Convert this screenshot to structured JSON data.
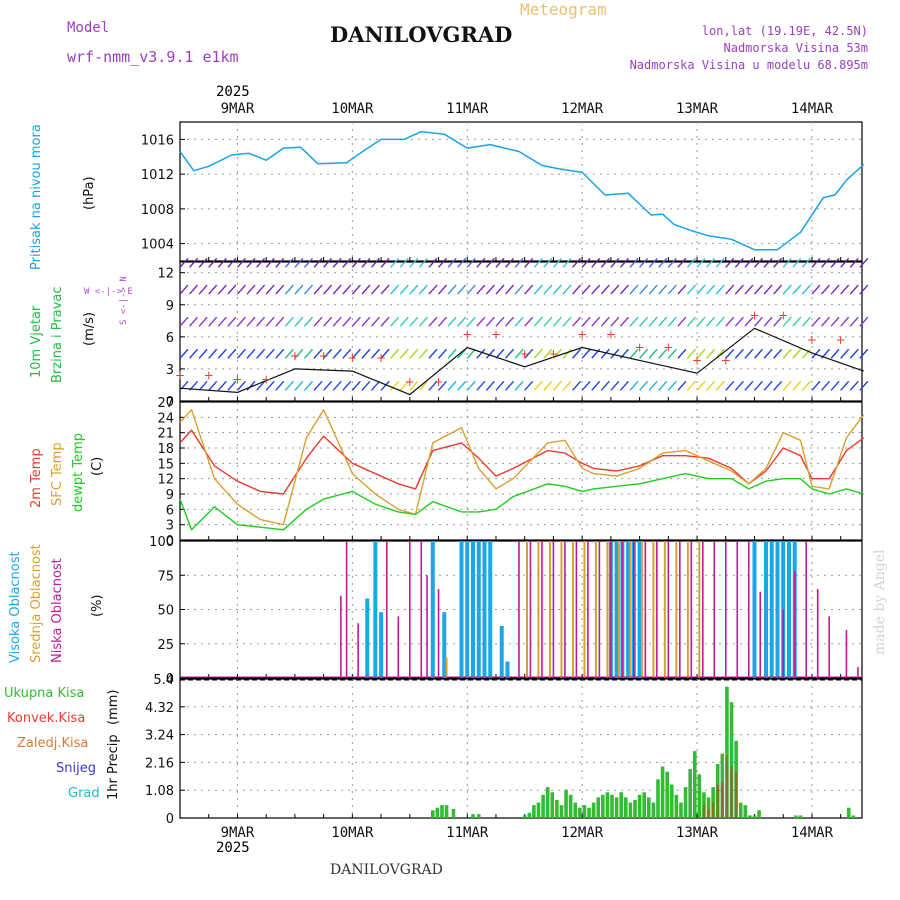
{
  "header": {
    "model_label": "Model",
    "model_name": "wrf-nmm_v3.9.1 e1km",
    "product": "Meteogram",
    "station": "DANILOVGRAD",
    "lonlat": "lon,lat (19.19E, 42.5N)",
    "elevation": "Nadmorska Visina 53m",
    "model_elevation": "Nadmorska Visina u modelu 68.895m"
  },
  "colors": {
    "pressure": "#1aa3e8",
    "temp2m": "#e83c2e",
    "sfc_temp": "#d9a030",
    "dewpt": "#22cc22",
    "high_cloud": "#1ba6e8",
    "mid_cloud": "#d9a030",
    "low_cloud": "#c0199a",
    "total_precip": "#33bb33",
    "conv_precip": "#e83c2e",
    "frozen_precip": "#e07830",
    "snow": "#3b3bcc",
    "hail": "#22bbbb",
    "wind_label": "#22bb44",
    "compass": "#b050d0",
    "model_text": "#9a40c8",
    "meteogram_text": "#e8c070"
  },
  "time_axis": {
    "year": "2025",
    "days": [
      "9MAR",
      "10MAR",
      "11MAR",
      "12MAR",
      "13MAR",
      "14MAR"
    ]
  },
  "panels": {
    "pressure": {
      "title": "Pritisak na nivou mora",
      "unit": "(hPa)"
    },
    "wind": {
      "title_1": "10m Vjetar",
      "title_2": "Brzina i Pravac",
      "unit": "(m/s)",
      "compass": "W <-|-> E",
      "compass_v": "S <-|-> N"
    },
    "temp": {
      "title_1": "2m Temp",
      "title_2": "SFC Temp",
      "title_3": "dewpt Temp",
      "unit": "(C)"
    },
    "cloud": {
      "title_1": "Visoka Oblacnost",
      "title_2": "Srednja Oblacnost",
      "title_3": "Niska Oblacnost",
      "unit": "(%)"
    },
    "precip": {
      "title": "1hr Precip",
      "unit": "(mm)",
      "legend": [
        "Ukupna Kisa",
        "Konvek.Kisa",
        "Zaledj.Kisa",
        "Snijeg",
        "Grad"
      ]
    }
  },
  "footer": {
    "station": "DANILOVGRAD",
    "credit": "made by Angel"
  },
  "chart_data": [
    {
      "type": "line",
      "title": "Pritisak na nivou mora",
      "ylabel": "(hPa)",
      "x_unit": "days since 8MAR 12UTC",
      "ylim": [
        1002,
        1018
      ],
      "yticks": [
        "1004",
        "1008",
        "1012",
        "1016"
      ],
      "series": [
        {
          "name": "Pritisak na nivou mora",
          "x": [
            0,
            0.12,
            0.25,
            0.45,
            0.6,
            0.75,
            0.9,
            1.05,
            1.2,
            1.45,
            1.6,
            1.75,
            1.95,
            2.1,
            2.3,
            2.5,
            2.7,
            2.95,
            3.15,
            3.3,
            3.5,
            3.7,
            3.9,
            4.1,
            4.2,
            4.3,
            4.45,
            4.6,
            4.8,
            5.0,
            5.2,
            5.4,
            5.6,
            5.7,
            5.8,
            5.95
          ],
          "values": [
            1014.6,
            1012.4,
            1012.9,
            1014.2,
            1014.4,
            1013.6,
            1015.0,
            1015.1,
            1013.2,
            1013.3,
            1014.7,
            1016.0,
            1016.0,
            1016.9,
            1016.6,
            1015.0,
            1015.4,
            1014.6,
            1013.0,
            1012.6,
            1012.2,
            1009.6,
            1009.8,
            1007.3,
            1007.4,
            1006.2,
            1005.5,
            1004.9,
            1004.5,
            1003.3,
            1003.3,
            1005.3,
            1009.3,
            1009.6,
            1011.3,
            1013.1
          ]
        }
      ]
    },
    {
      "type": "line",
      "title": "10m Vjetar Brzina i Pravac",
      "ylabel": "(m/s)",
      "ylim": [
        0,
        13
      ],
      "yticks": [
        "0",
        "3",
        "6",
        "9",
        "12"
      ],
      "series": [
        {
          "name": "10m Vjetar",
          "x": [
            0,
            0.5,
            1.0,
            1.5,
            2.0,
            2.5,
            3.0,
            3.5,
            4.0,
            4.5,
            5.0,
            5.5,
            5.95
          ],
          "values": [
            1.2,
            0.8,
            3.0,
            2.8,
            0.6,
            5.0,
            3.2,
            5.0,
            3.8,
            2.6,
            6.8,
            4.5,
            2.8
          ]
        }
      ]
    },
    {
      "type": "line",
      "title": "2m Temp / SFC Temp / dewpt Temp",
      "ylabel": "(C)",
      "ylim": [
        0,
        27
      ],
      "yticks": [
        "0",
        "3",
        "6",
        "9",
        "12",
        "15",
        "18",
        "21",
        "24",
        "27"
      ],
      "x": [
        0,
        0.1,
        0.3,
        0.5,
        0.7,
        0.9,
        1.1,
        1.25,
        1.5,
        1.7,
        1.9,
        2.05,
        2.2,
        2.45,
        2.6,
        2.75,
        2.9,
        3.2,
        3.35,
        3.5,
        3.6,
        3.8,
        4.0,
        4.2,
        4.4,
        4.6,
        4.8,
        4.95,
        5.1,
        5.25,
        5.4,
        5.5,
        5.65,
        5.8,
        5.95
      ],
      "series": [
        {
          "name": "2m Temp",
          "values": [
            19.0,
            21.5,
            14.5,
            11.5,
            9.5,
            9.0,
            16.0,
            20.3,
            15.0,
            13.0,
            11.0,
            10.0,
            17.5,
            19.0,
            16.0,
            12.5,
            14.0,
            17.5,
            17.0,
            15.0,
            14.0,
            13.5,
            14.5,
            16.5,
            16.5,
            16.0,
            14.0,
            11.0,
            13.5,
            18.0,
            16.5,
            12.0,
            12.0,
            17.5,
            20.0
          ]
        },
        {
          "name": "SFC Temp",
          "values": [
            23.0,
            25.5,
            12.0,
            7.0,
            4.0,
            3.0,
            20.0,
            25.5,
            13.0,
            9.0,
            6.0,
            5.0,
            19.0,
            22.0,
            14.0,
            10.0,
            12.0,
            19.0,
            19.5,
            14.0,
            13.0,
            12.5,
            14.0,
            17.0,
            17.5,
            15.5,
            13.5,
            11.0,
            14.0,
            21.0,
            19.5,
            10.5,
            10.0,
            20.0,
            24.5
          ]
        },
        {
          "name": "dewpt Temp",
          "values": [
            8.0,
            2.0,
            6.5,
            3.0,
            2.5,
            2.0,
            6.0,
            8.0,
            9.5,
            7.0,
            5.5,
            5.0,
            7.5,
            5.5,
            5.5,
            6.0,
            8.5,
            11.0,
            10.5,
            9.5,
            10.0,
            10.5,
            11.0,
            12.0,
            13.0,
            12.0,
            12.0,
            10.0,
            11.5,
            12.0,
            12.0,
            10.0,
            9.0,
            10.0,
            9.0
          ]
        }
      ]
    },
    {
      "type": "bar",
      "title": "Visoka / Srednja / Niska Oblacnost",
      "ylabel": "(%)",
      "ylim": [
        0,
        100
      ],
      "yticks": [
        "0",
        "25",
        "50",
        "75",
        "100"
      ],
      "series": [
        {
          "name": "Visoka Oblacnost",
          "x": [
            1.63,
            1.7,
            1.75,
            2.2,
            2.3,
            2.45,
            2.5,
            2.55,
            2.6,
            2.65,
            2.7,
            2.8,
            2.85,
            3.75,
            3.8,
            3.85,
            3.9,
            3.95,
            4.0,
            5.0,
            5.1,
            5.15,
            5.2,
            5.25,
            5.3,
            5.35
          ],
          "values": [
            58,
            100,
            48,
            100,
            48,
            100,
            100,
            100,
            100,
            100,
            100,
            38,
            12,
            100,
            100,
            100,
            100,
            100,
            100,
            100,
            100,
            100,
            100,
            100,
            100,
            100
          ]
        },
        {
          "name": "Srednja Oblacnost",
          "x": [
            2.32,
            3.02,
            3.12,
            3.22,
            3.32,
            3.42,
            3.52,
            3.62,
            3.72,
            3.82,
            3.92,
            4.02,
            4.12,
            4.22,
            4.32,
            4.42,
            4.52
          ],
          "values": [
            15,
            100,
            100,
            100,
            100,
            100,
            100,
            100,
            100,
            100,
            100,
            100,
            100,
            100,
            100,
            100,
            100
          ]
        },
        {
          "name": "Niska Oblacnost",
          "x": [
            1.4,
            1.45,
            1.55,
            1.8,
            1.9,
            2.0,
            2.1,
            2.15,
            2.25,
            2.95,
            3.05,
            3.15,
            3.25,
            3.35,
            3.45,
            3.55,
            3.65,
            3.75,
            3.85,
            3.95,
            4.05,
            4.15,
            4.25,
            4.35,
            4.45,
            4.55,
            4.65,
            4.75,
            4.85,
            4.95,
            5.05,
            5.25,
            5.35,
            5.45,
            5.55,
            5.65,
            5.8,
            5.9
          ],
          "values": [
            60,
            100,
            40,
            100,
            45,
            100,
            100,
            75,
            65,
            100,
            100,
            100,
            100,
            100,
            100,
            100,
            100,
            100,
            100,
            100,
            100,
            100,
            100,
            100,
            100,
            100,
            100,
            100,
            100,
            100,
            63,
            50,
            78,
            100,
            65,
            45,
            35,
            8
          ]
        }
      ]
    },
    {
      "type": "bar",
      "title": "1hr Precip",
      "ylabel": "(mm)",
      "ylim": [
        0,
        5.4
      ],
      "yticks": [
        "0",
        "1.08",
        "2.16",
        "3.24",
        "4.32",
        "5.4"
      ],
      "series": [
        {
          "name": "Ukupna Kisa",
          "x": [
            2.2,
            2.24,
            2.28,
            2.32,
            2.38,
            2.55,
            2.6,
            3.0,
            3.04,
            3.08,
            3.12,
            3.16,
            3.2,
            3.24,
            3.28,
            3.32,
            3.36,
            3.4,
            3.44,
            3.48,
            3.52,
            3.56,
            3.6,
            3.64,
            3.68,
            3.72,
            3.76,
            3.8,
            3.84,
            3.88,
            3.92,
            3.96,
            4.0,
            4.04,
            4.08,
            4.12,
            4.16,
            4.2,
            4.24,
            4.28,
            4.32,
            4.36,
            4.4,
            4.44,
            4.48,
            4.52,
            4.56,
            4.6,
            4.64,
            4.68,
            4.72,
            4.76,
            4.8,
            4.84,
            4.88,
            4.92,
            4.96,
            5.0,
            5.04,
            5.36,
            5.4,
            5.82,
            5.86
          ],
          "values": [
            0.3,
            0.4,
            0.5,
            0.5,
            0.35,
            0.15,
            0.15,
            0.1,
            0.2,
            0.5,
            0.6,
            0.9,
            1.2,
            1.0,
            0.7,
            0.5,
            1.1,
            0.9,
            0.6,
            0.4,
            0.5,
            0.4,
            0.6,
            0.8,
            0.9,
            1.0,
            0.9,
            0.8,
            1.0,
            0.8,
            0.6,
            0.7,
            0.9,
            1.0,
            0.8,
            0.6,
            1.5,
            2.0,
            1.8,
            1.3,
            0.9,
            0.6,
            1.2,
            1.9,
            2.6,
            1.7,
            1.0,
            0.8,
            1.2,
            2.1,
            2.5,
            5.1,
            4.5,
            3.0,
            0.6,
            0.5,
            0.1,
            0.1,
            0.3,
            0.1,
            0.1,
            0.4,
            0.1
          ]
        },
        {
          "name": "Konvek.Kisa",
          "x": [
            4.56,
            4.6,
            4.64,
            4.68,
            4.72,
            4.76,
            4.8,
            4.84
          ],
          "values": [
            0.5,
            0.3,
            0.6,
            1.3,
            1.4,
            2.4,
            2.0,
            1.8
          ]
        }
      ]
    }
  ]
}
